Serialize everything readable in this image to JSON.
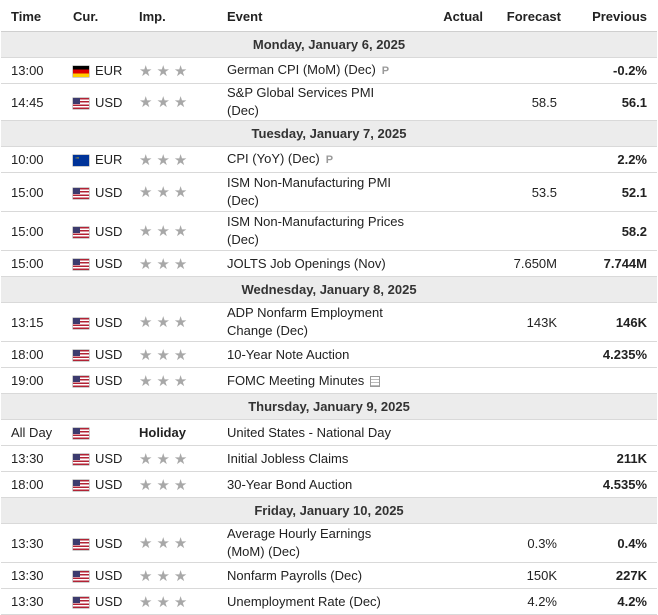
{
  "headers": {
    "time": "Time",
    "currency": "Cur.",
    "importance": "Imp.",
    "event": "Event",
    "actual": "Actual",
    "forecast": "Forecast",
    "previous": "Previous"
  },
  "star_glyph": "★★★",
  "days": [
    {
      "label": "Monday, January 6, 2025",
      "events": [
        {
          "time": "13:00",
          "flag": "de",
          "currency": "EUR",
          "importance": "stars",
          "event": "German CPI (MoM) (Dec)",
          "icon": "preliminary-icon",
          "actual": "",
          "forecast": "",
          "previous": "-0.2%"
        },
        {
          "time": "14:45",
          "flag": "us",
          "currency": "USD",
          "importance": "stars",
          "event": "S&P Global Services PMI (Dec)",
          "actual": "",
          "forecast": "58.5",
          "previous": "56.1"
        }
      ]
    },
    {
      "label": "Tuesday, January 7, 2025",
      "events": [
        {
          "time": "10:00",
          "flag": "eu",
          "currency": "EUR",
          "importance": "stars",
          "event": "CPI (YoY) (Dec)",
          "icon": "preliminary-icon",
          "actual": "",
          "forecast": "",
          "previous": "2.2%"
        },
        {
          "time": "15:00",
          "flag": "us",
          "currency": "USD",
          "importance": "stars",
          "event": "ISM Non-Manufacturing PMI (Dec)",
          "tall": true,
          "actual": "",
          "forecast": "53.5",
          "previous": "52.1"
        },
        {
          "time": "15:00",
          "flag": "us",
          "currency": "USD",
          "importance": "stars",
          "event": "ISM Non-Manufacturing Prices (Dec)",
          "tall": true,
          "actual": "",
          "forecast": "",
          "previous": "58.2"
        },
        {
          "time": "15:00",
          "flag": "us",
          "currency": "USD",
          "importance": "stars",
          "event": "JOLTS Job Openings (Nov)",
          "actual": "",
          "forecast": "7.650M",
          "previous": "7.744M"
        }
      ]
    },
    {
      "label": "Wednesday, January 8, 2025",
      "events": [
        {
          "time": "13:15",
          "flag": "us",
          "currency": "USD",
          "importance": "stars",
          "event": "ADP Nonfarm Employment Change (Dec)",
          "tall": true,
          "actual": "",
          "forecast": "143K",
          "previous": "146K"
        },
        {
          "time": "18:00",
          "flag": "us",
          "currency": "USD",
          "importance": "stars",
          "event": "10-Year Note Auction",
          "actual": "",
          "forecast": "",
          "previous": "4.235%"
        },
        {
          "time": "19:00",
          "flag": "us",
          "currency": "USD",
          "importance": "stars",
          "event": "FOMC Meeting Minutes",
          "icon": "document-icon",
          "actual": "",
          "forecast": "",
          "previous": ""
        }
      ]
    },
    {
      "label": "Thursday, January 9, 2025",
      "events": [
        {
          "time": "All Day",
          "flag": "us",
          "currency": "",
          "importance": "holiday",
          "importance_text": "Holiday",
          "event": "United States - National Day",
          "actual": "",
          "forecast": "",
          "previous": ""
        },
        {
          "time": "13:30",
          "flag": "us",
          "currency": "USD",
          "importance": "stars",
          "event": "Initial Jobless Claims",
          "actual": "",
          "forecast": "",
          "previous": "211K"
        },
        {
          "time": "18:00",
          "flag": "us",
          "currency": "USD",
          "importance": "stars",
          "event": "30-Year Bond Auction",
          "actual": "",
          "forecast": "",
          "previous": "4.535%"
        }
      ]
    },
    {
      "label": "Friday, January 10, 2025",
      "events": [
        {
          "time": "13:30",
          "flag": "us",
          "currency": "USD",
          "importance": "stars",
          "event": "Average Hourly Earnings (MoM) (Dec)",
          "tall": true,
          "actual": "",
          "forecast": "0.3%",
          "previous": "0.4%"
        },
        {
          "time": "13:30",
          "flag": "us",
          "currency": "USD",
          "importance": "stars",
          "event": "Nonfarm Payrolls (Dec)",
          "actual": "",
          "forecast": "150K",
          "previous": "227K"
        },
        {
          "time": "13:30",
          "flag": "us",
          "currency": "USD",
          "importance": "stars",
          "event": "Unemployment Rate (Dec)",
          "actual": "",
          "forecast": "4.2%",
          "previous": "4.2%"
        }
      ]
    }
  ]
}
